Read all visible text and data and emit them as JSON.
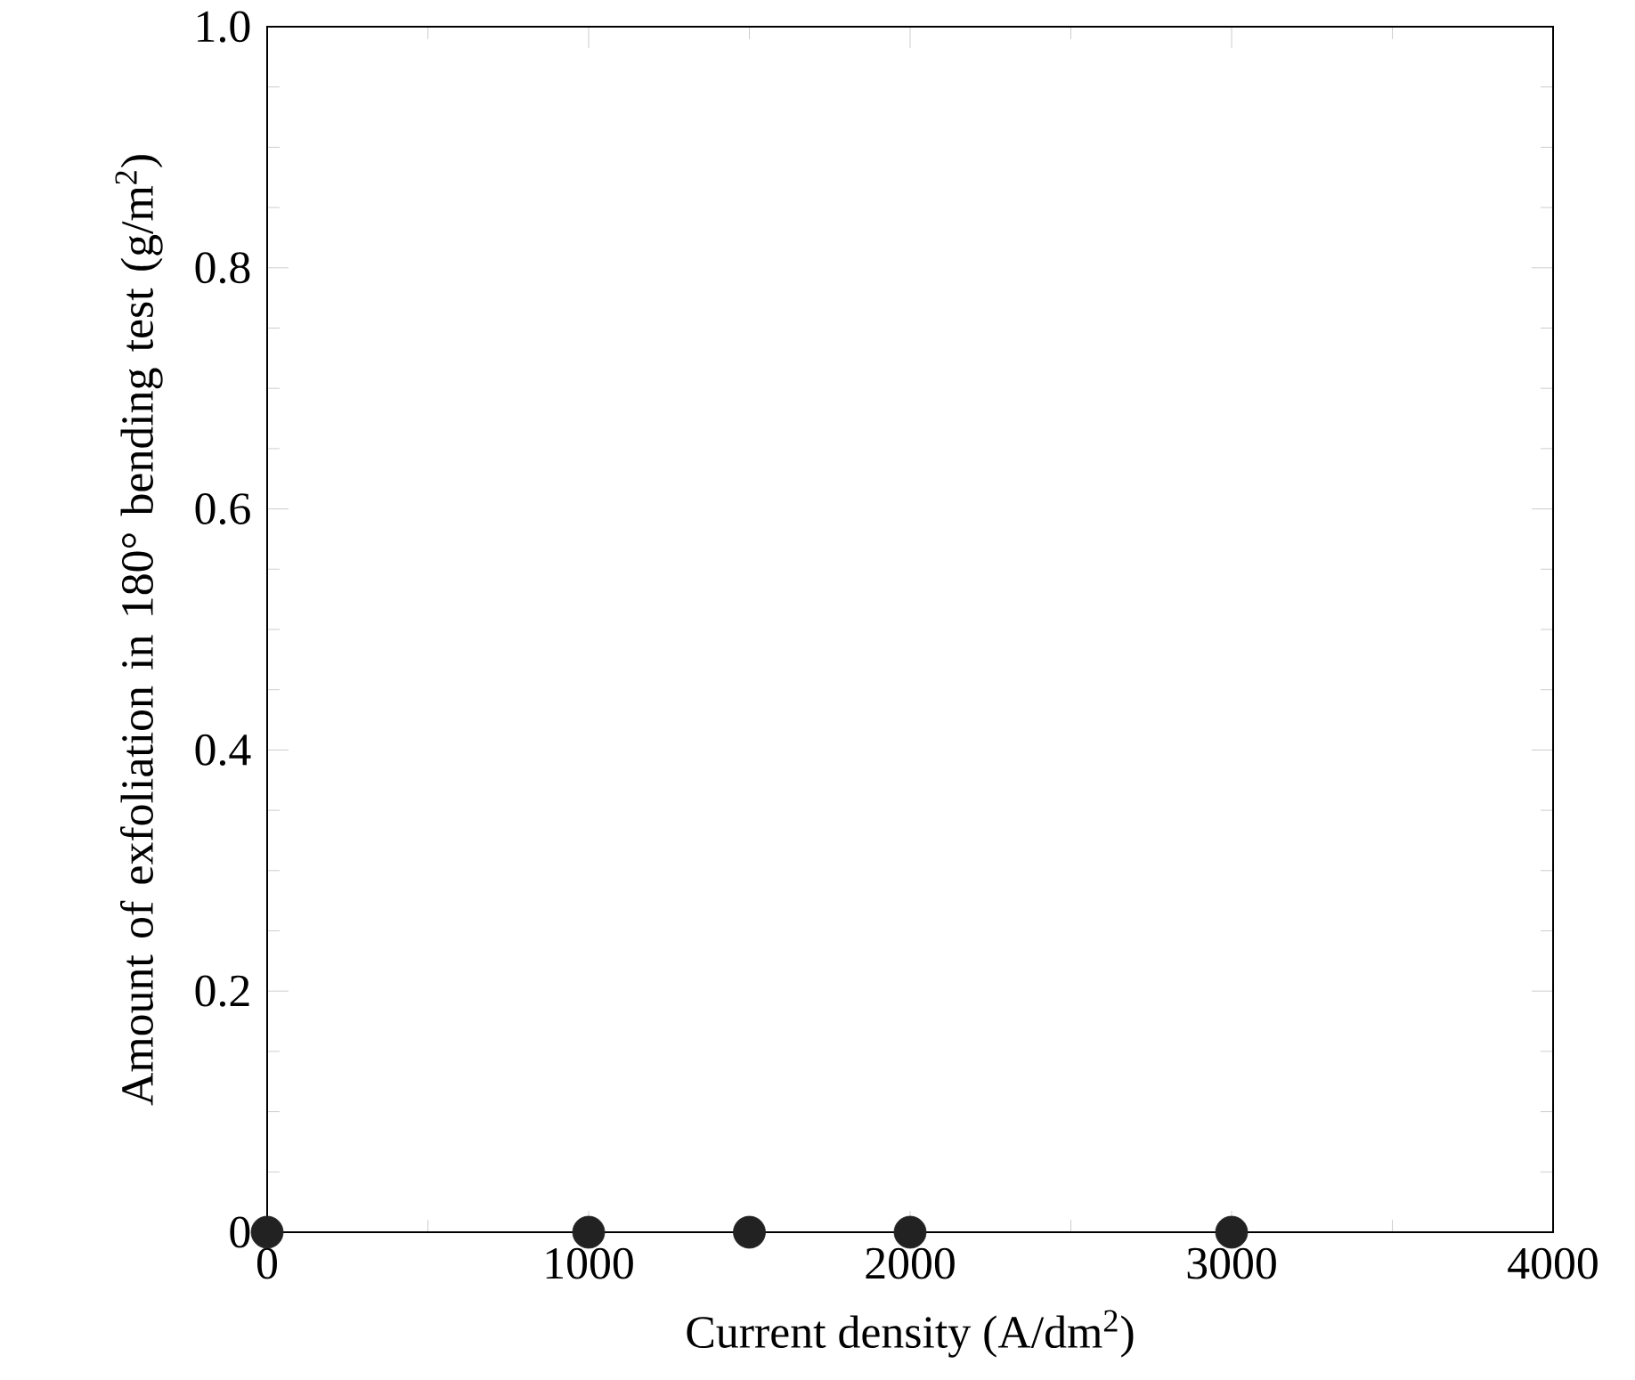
{
  "chart_data": {
    "type": "scatter",
    "xlabel": "Current density (A/dm$^{2}$)",
    "ylabel": "Amount of exfoliation in 180° bending test (g/m$^{2}$)",
    "x": [
      0,
      1000,
      1500,
      2000,
      3000
    ],
    "values": [
      0,
      0,
      0,
      0,
      0
    ],
    "color": "#222222",
    "marker": "circle",
    "xlim": [
      0,
      4000
    ],
    "ylim": [
      0,
      1.0
    ],
    "xticks": [
      0,
      1000,
      2000,
      3000,
      4000
    ],
    "yticks": [
      0,
      {
        "value": 0.2,
        "label": "0.2"
      },
      {
        "value": 0.4,
        "label": "0.4"
      },
      {
        "value": 0.6,
        "label": "0.6"
      },
      {
        "value": 0.8,
        "label": "0.8"
      },
      {
        "value": 1.0,
        "label": "1.0"
      }
    ],
    "grid": false
  }
}
